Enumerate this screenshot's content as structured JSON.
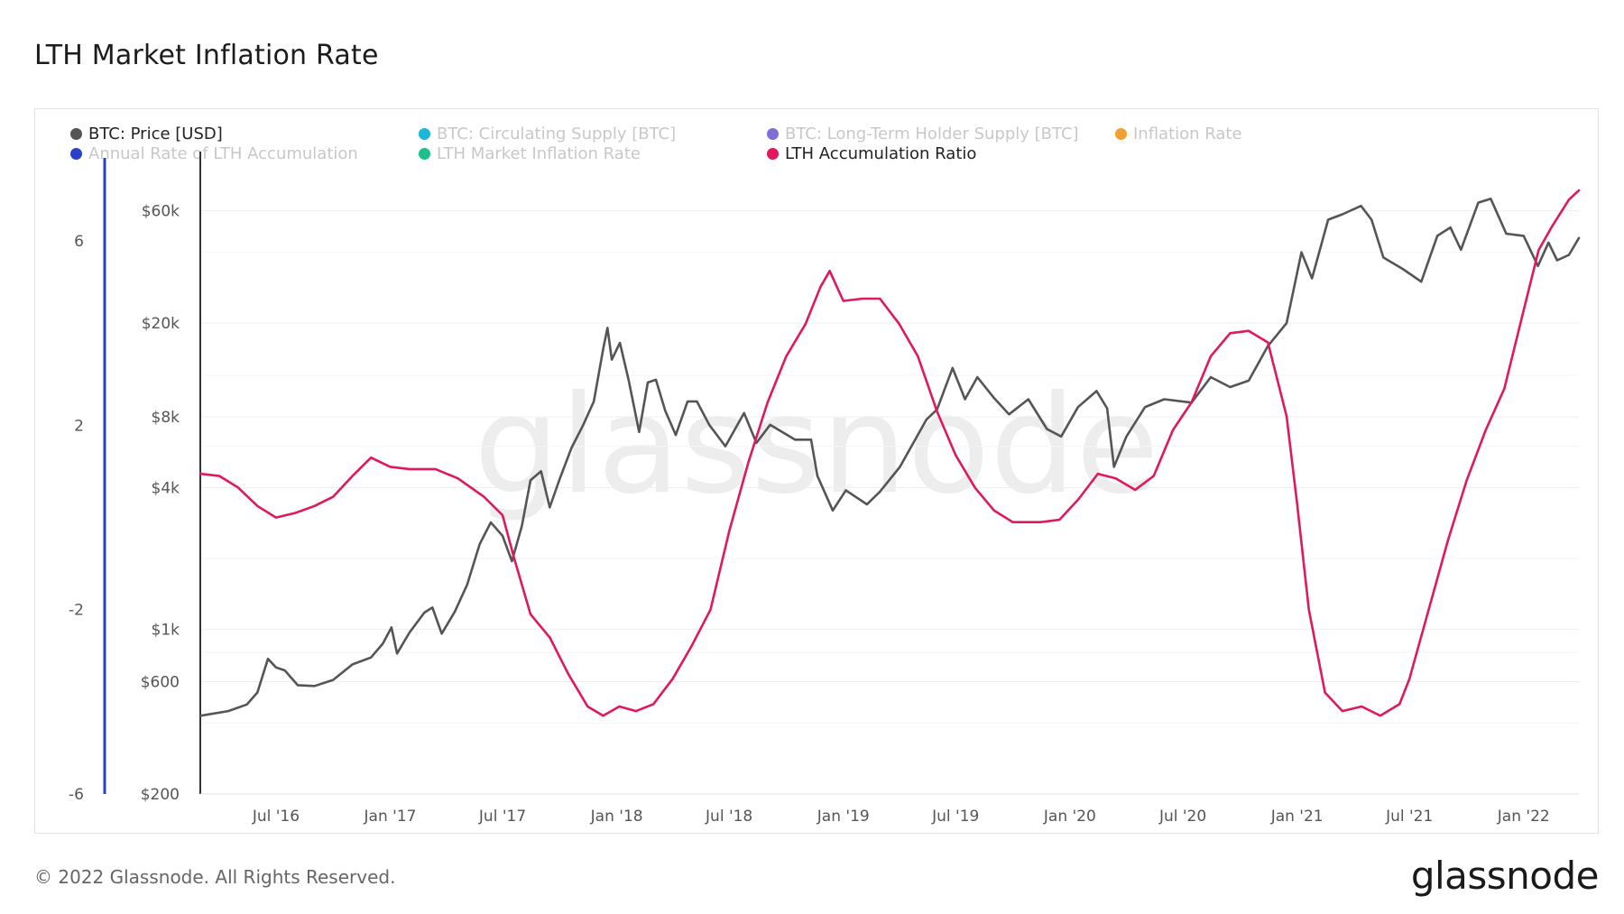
{
  "title": "LTH Market Inflation Rate",
  "footer": "© 2022 Glassnode. All Rights Reserved.",
  "brand": "glassnode",
  "watermark": "glassnode",
  "legend": [
    {
      "label": "BTC: Price [USD]",
      "color": "#555555",
      "active": true
    },
    {
      "label": "BTC: Circulating Supply [BTC]",
      "color": "#1fb5d6",
      "active": false
    },
    {
      "label": "BTC: Long-Term Holder Supply [BTC]",
      "color": "#7e6fd6",
      "active": false
    },
    {
      "label": "Inflation Rate",
      "color": "#f0a030",
      "active": false
    },
    {
      "label": "Annual Rate of LTH Accumulation",
      "color": "#2a40c8",
      "active": false
    },
    {
      "label": "LTH Market Inflation Rate",
      "color": "#1fbf8a",
      "active": false
    },
    {
      "label": "LTH Accumulation Ratio",
      "color": "#e0185c",
      "active": true
    }
  ],
  "chart_data": {
    "type": "line",
    "title": "LTH Market Inflation Rate",
    "x_ticks": [
      "Jul '16",
      "Jan '17",
      "Jul '17",
      "Jan '18",
      "Jul '18",
      "Jan '19",
      "Jul '19",
      "Jan '20",
      "Jul '20",
      "Jan '21",
      "Jul '21",
      "Jan '22"
    ],
    "xlim": [
      "2016-03-01",
      "2022-03-31"
    ],
    "y_left_ticks": [
      "6",
      "2",
      "-2",
      "-6"
    ],
    "y_left_range": [
      -6,
      8
    ],
    "y_price_ticks": [
      "$60k",
      "$20k",
      "$8k",
      "$4k",
      "$1k",
      "$600",
      "$200"
    ],
    "y_price_range": [
      200,
      110000
    ],
    "y_price_scale": "log",
    "grid": true,
    "series": [
      {
        "name": "BTC: Price [USD]",
        "color": "#555555",
        "axis": "price",
        "points": [
          [
            "2016-03-01",
            430
          ],
          [
            "2016-04-15",
            450
          ],
          [
            "2016-05-15",
            480
          ],
          [
            "2016-06-01",
            540
          ],
          [
            "2016-06-18",
            750
          ],
          [
            "2016-07-01",
            690
          ],
          [
            "2016-07-15",
            670
          ],
          [
            "2016-08-05",
            580
          ],
          [
            "2016-09-01",
            575
          ],
          [
            "2016-10-01",
            610
          ],
          [
            "2016-11-01",
            710
          ],
          [
            "2016-12-01",
            760
          ],
          [
            "2016-12-20",
            870
          ],
          [
            "2017-01-03",
            1020
          ],
          [
            "2017-01-12",
            790
          ],
          [
            "2017-02-01",
            970
          ],
          [
            "2017-02-25",
            1180
          ],
          [
            "2017-03-10",
            1240
          ],
          [
            "2017-03-25",
            960
          ],
          [
            "2017-04-15",
            1190
          ],
          [
            "2017-05-05",
            1550
          ],
          [
            "2017-05-25",
            2300
          ],
          [
            "2017-06-12",
            2850
          ],
          [
            "2017-07-01",
            2500
          ],
          [
            "2017-07-16",
            1950
          ],
          [
            "2017-08-01",
            2750
          ],
          [
            "2017-08-15",
            4300
          ],
          [
            "2017-09-01",
            4700
          ],
          [
            "2017-09-15",
            3300
          ],
          [
            "2017-10-01",
            4350
          ],
          [
            "2017-10-20",
            5900
          ],
          [
            "2017-11-08",
            7400
          ],
          [
            "2017-11-25",
            9300
          ],
          [
            "2017-12-10",
            15500
          ],
          [
            "2017-12-17",
            19100
          ],
          [
            "2017-12-24",
            14000
          ],
          [
            "2018-01-06",
            16500
          ],
          [
            "2018-01-20",
            11500
          ],
          [
            "2018-02-06",
            6900
          ],
          [
            "2018-02-20",
            11200
          ],
          [
            "2018-03-05",
            11500
          ],
          [
            "2018-03-20",
            8500
          ],
          [
            "2018-04-06",
            6700
          ],
          [
            "2018-04-25",
            9300
          ],
          [
            "2018-05-10",
            9300
          ],
          [
            "2018-05-30",
            7400
          ],
          [
            "2018-06-25",
            6000
          ],
          [
            "2018-07-25",
            8300
          ],
          [
            "2018-08-14",
            6200
          ],
          [
            "2018-09-05",
            7400
          ],
          [
            "2018-10-15",
            6400
          ],
          [
            "2018-11-10",
            6400
          ],
          [
            "2018-11-20",
            4500
          ],
          [
            "2018-12-15",
            3200
          ],
          [
            "2019-01-05",
            3900
          ],
          [
            "2019-02-08",
            3400
          ],
          [
            "2019-03-01",
            3850
          ],
          [
            "2019-04-02",
            4900
          ],
          [
            "2019-05-15",
            7800
          ],
          [
            "2019-06-01",
            8600
          ],
          [
            "2019-06-26",
            12900
          ],
          [
            "2019-07-16",
            9500
          ],
          [
            "2019-08-05",
            11800
          ],
          [
            "2019-09-01",
            9600
          ],
          [
            "2019-09-25",
            8200
          ],
          [
            "2019-10-26",
            9500
          ],
          [
            "2019-11-25",
            7100
          ],
          [
            "2019-12-18",
            6600
          ],
          [
            "2020-01-14",
            8800
          ],
          [
            "2020-02-13",
            10300
          ],
          [
            "2020-03-01",
            8700
          ],
          [
            "2020-03-12",
            4900
          ],
          [
            "2020-04-01",
            6600
          ],
          [
            "2020-05-01",
            8800
          ],
          [
            "2020-06-01",
            9500
          ],
          [
            "2020-07-15",
            9200
          ],
          [
            "2020-08-15",
            11800
          ],
          [
            "2020-09-15",
            10700
          ],
          [
            "2020-10-15",
            11400
          ],
          [
            "2020-11-15",
            16000
          ],
          [
            "2020-12-15",
            20000
          ],
          [
            "2021-01-08",
            40000
          ],
          [
            "2021-01-25",
            31000
          ],
          [
            "2021-02-20",
            55000
          ],
          [
            "2021-03-15",
            58000
          ],
          [
            "2021-04-14",
            63000
          ],
          [
            "2021-05-01",
            55000
          ],
          [
            "2021-05-20",
            38000
          ],
          [
            "2021-06-20",
            34000
          ],
          [
            "2021-07-20",
            30000
          ],
          [
            "2021-08-15",
            47000
          ],
          [
            "2021-09-05",
            51000
          ],
          [
            "2021-09-22",
            41000
          ],
          [
            "2021-10-20",
            65000
          ],
          [
            "2021-11-09",
            67500
          ],
          [
            "2021-12-04",
            48000
          ],
          [
            "2022-01-01",
            47000
          ],
          [
            "2022-01-24",
            35000
          ],
          [
            "2022-02-10",
            44000
          ],
          [
            "2022-02-24",
            37000
          ],
          [
            "2022-03-15",
            39000
          ],
          [
            "2022-03-31",
            46000
          ]
        ]
      },
      {
        "name": "LTH Accumulation Ratio",
        "color": "#e0185c",
        "axis": "left",
        "points": [
          [
            "2016-03-01",
            0.95
          ],
          [
            "2016-04-01",
            0.9
          ],
          [
            "2016-05-01",
            0.65
          ],
          [
            "2016-06-01",
            0.25
          ],
          [
            "2016-07-01",
            0.0
          ],
          [
            "2016-08-01",
            0.1
          ],
          [
            "2016-09-01",
            0.25
          ],
          [
            "2016-10-01",
            0.45
          ],
          [
            "2016-11-01",
            0.9
          ],
          [
            "2016-12-01",
            1.3
          ],
          [
            "2017-01-01",
            1.1
          ],
          [
            "2017-02-01",
            1.05
          ],
          [
            "2017-03-15",
            1.05
          ],
          [
            "2017-04-20",
            0.85
          ],
          [
            "2017-06-01",
            0.45
          ],
          [
            "2017-07-01",
            0.05
          ],
          [
            "2017-07-20",
            -0.9
          ],
          [
            "2017-08-15",
            -2.1
          ],
          [
            "2017-09-15",
            -2.6
          ],
          [
            "2017-10-15",
            -3.4
          ],
          [
            "2017-11-15",
            -4.1
          ],
          [
            "2017-12-10",
            -4.3
          ],
          [
            "2018-01-05",
            -4.1
          ],
          [
            "2018-02-01",
            -4.2
          ],
          [
            "2018-03-01",
            -4.05
          ],
          [
            "2018-04-01",
            -3.5
          ],
          [
            "2018-05-01",
            -2.8
          ],
          [
            "2018-06-01",
            -2.0
          ],
          [
            "2018-07-01",
            -0.3
          ],
          [
            "2018-08-01",
            1.2
          ],
          [
            "2018-09-01",
            2.5
          ],
          [
            "2018-10-01",
            3.5
          ],
          [
            "2018-11-01",
            4.2
          ],
          [
            "2018-11-25",
            5.0
          ],
          [
            "2018-12-10",
            5.35
          ],
          [
            "2019-01-01",
            4.7
          ],
          [
            "2019-02-01",
            4.75
          ],
          [
            "2019-03-01",
            4.75
          ],
          [
            "2019-04-01",
            4.2
          ],
          [
            "2019-05-01",
            3.5
          ],
          [
            "2019-06-01",
            2.3
          ],
          [
            "2019-07-01",
            1.35
          ],
          [
            "2019-08-01",
            0.65
          ],
          [
            "2019-09-01",
            0.15
          ],
          [
            "2019-10-01",
            -0.1
          ],
          [
            "2019-11-15",
            -0.1
          ],
          [
            "2019-12-15",
            -0.05
          ],
          [
            "2020-01-15",
            0.4
          ],
          [
            "2020-02-15",
            0.95
          ],
          [
            "2020-03-15",
            0.85
          ],
          [
            "2020-04-15",
            0.6
          ],
          [
            "2020-05-15",
            0.9
          ],
          [
            "2020-06-15",
            1.9
          ],
          [
            "2020-07-15",
            2.5
          ],
          [
            "2020-08-15",
            3.5
          ],
          [
            "2020-09-15",
            4.0
          ],
          [
            "2020-10-15",
            4.05
          ],
          [
            "2020-11-15",
            3.8
          ],
          [
            "2020-12-15",
            2.2
          ],
          [
            "2021-01-01",
            0.3
          ],
          [
            "2021-01-20",
            -2.0
          ],
          [
            "2021-02-15",
            -3.8
          ],
          [
            "2021-03-15",
            -4.2
          ],
          [
            "2021-04-15",
            -4.1
          ],
          [
            "2021-05-15",
            -4.3
          ],
          [
            "2021-06-15",
            -4.05
          ],
          [
            "2021-07-01",
            -3.5
          ],
          [
            "2021-08-01",
            -2.0
          ],
          [
            "2021-09-01",
            -0.5
          ],
          [
            "2021-10-01",
            0.8
          ],
          [
            "2021-11-01",
            1.9
          ],
          [
            "2021-12-01",
            2.8
          ],
          [
            "2022-01-01",
            4.5
          ],
          [
            "2022-01-25",
            5.8
          ],
          [
            "2022-02-15",
            6.3
          ],
          [
            "2022-03-15",
            6.9
          ],
          [
            "2022-03-31",
            7.1
          ]
        ]
      }
    ]
  }
}
